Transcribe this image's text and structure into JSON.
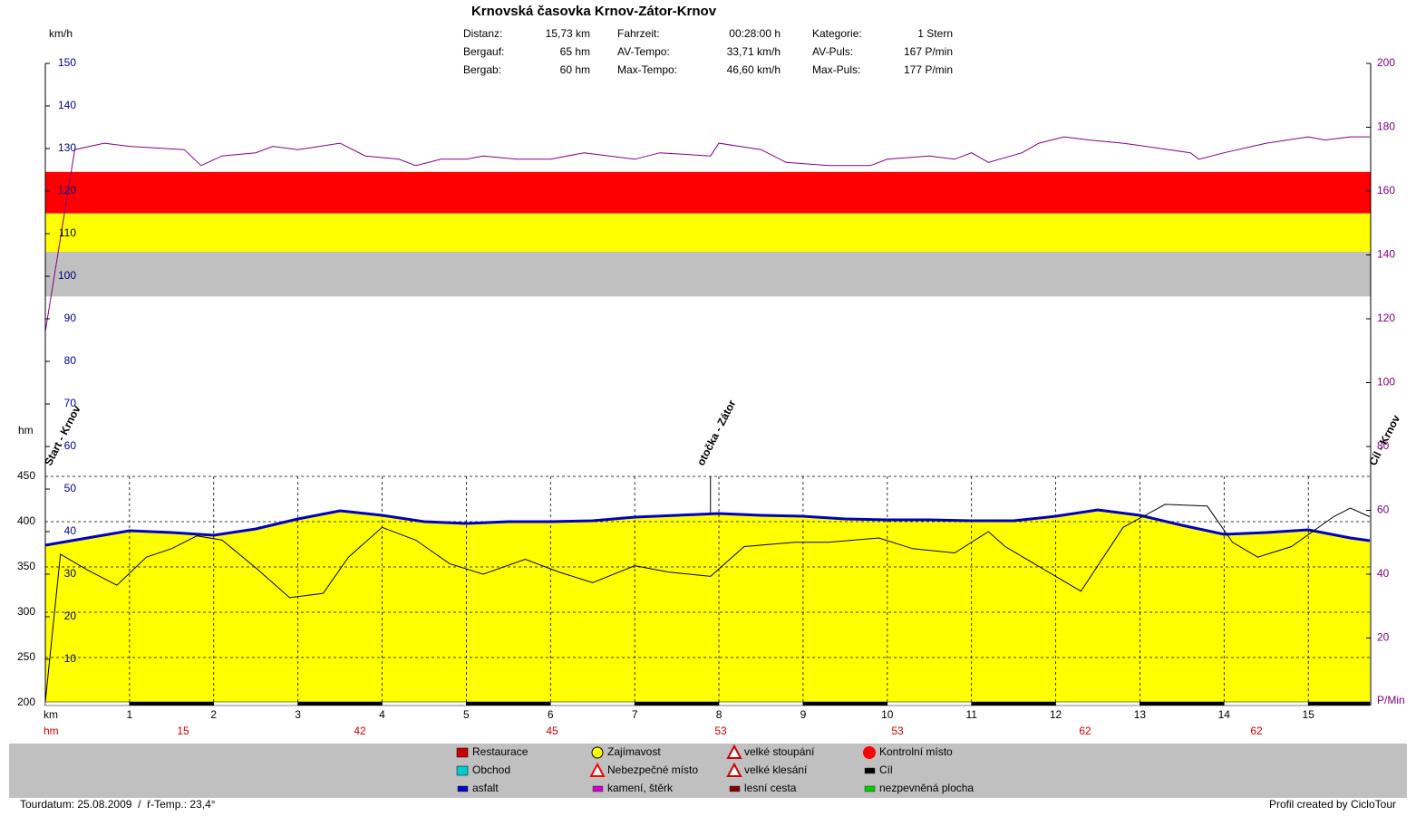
{
  "header": {
    "title": "Krnovská časovka Krnov-Zátor-Krnov",
    "stats": [
      {
        "label": "Distanz:",
        "value": "15,73 km"
      },
      {
        "label": "Bergauf:",
        "value": "65 hm"
      },
      {
        "label": "Bergab:",
        "value": "60 hm"
      },
      {
        "label": "Fahrzeit:",
        "value": "00:28:00 h"
      },
      {
        "label": "AV-Tempo:",
        "value": "33,71 km/h"
      },
      {
        "label": "Max-Tempo:",
        "value": "46,60 km/h"
      },
      {
        "label": "Kategorie:",
        "value": "1 Stern"
      },
      {
        "label": "AV-Puls:",
        "value": "167 P/min"
      },
      {
        "label": "Max-Puls:",
        "value": "177 P/min"
      }
    ]
  },
  "chart_data": {
    "type": "line",
    "ylabel": "km/h",
    "y2label": "P/Min",
    "y3label": "hm",
    "xlabel": "km",
    "xlim": [
      0,
      15.73
    ],
    "xticks": [
      1,
      2,
      3,
      4,
      5,
      6,
      7,
      8,
      9,
      10,
      11,
      12,
      13,
      14,
      15
    ],
    "ylim": [
      0,
      150
    ],
    "yticks": [
      10,
      20,
      30,
      40,
      50,
      60,
      70,
      80,
      90,
      100,
      110,
      120,
      130,
      140,
      150
    ],
    "y2lim": [
      0,
      200
    ],
    "y2ticks": [
      20,
      40,
      60,
      80,
      100,
      120,
      140,
      160,
      180,
      200
    ],
    "y3lim": [
      200,
      450
    ],
    "y3ticks": [
      200,
      250,
      300,
      350,
      400,
      450
    ],
    "pulse_zones": [
      {
        "from": 153,
        "to": 166,
        "color": "#ff0000"
      },
      {
        "from": 141,
        "to": 153,
        "color": "#ffff00"
      },
      {
        "from": 127,
        "to": 141,
        "color": "#c0c0c0"
      }
    ],
    "series": [
      {
        "axis": "y3",
        "color": "#0000c0",
        "fill": "#ffff00",
        "x": [
          0,
          0.5,
          1,
          1.5,
          2,
          2.5,
          3,
          3.5,
          4,
          4.5,
          5,
          5.5,
          6,
          6.5,
          7,
          7.5,
          8,
          8.5,
          9,
          9.5,
          10,
          10.5,
          11,
          11.5,
          12,
          12.5,
          13,
          13.5,
          14,
          14.5,
          15,
          15.5,
          15.73
        ],
        "values": [
          374,
          382,
          390,
          388,
          385,
          392,
          403,
          412,
          407,
          400,
          398,
          400,
          400,
          401,
          405,
          407,
          409,
          407,
          406,
          403,
          402,
          402,
          401,
          401,
          406,
          413,
          407,
          396,
          386,
          388,
          391,
          382,
          379
        ]
      },
      {
        "axis": "y",
        "color": "#000000",
        "x": [
          0,
          0.18,
          0.5,
          0.85,
          1.2,
          1.5,
          1.8,
          2.1,
          2.5,
          2.9,
          3.3,
          3.6,
          4,
          4.4,
          4.8,
          5.2,
          5.7,
          6.1,
          6.5,
          7,
          7.4,
          7.9,
          8.3,
          8.9,
          9.3,
          9.9,
          10.3,
          10.8,
          11.2,
          11.4,
          12,
          12.3,
          12.8,
          13.3,
          13.8,
          14.1,
          14.4,
          14.8,
          15.3,
          15.5,
          15.73
        ],
        "values": [
          0,
          34.7,
          31,
          27.4,
          34,
          36,
          39,
          38,
          31.5,
          24.5,
          25.5,
          34,
          41,
          38,
          32.5,
          30,
          33.5,
          30.5,
          28,
          32,
          30.5,
          29.5,
          36.5,
          37.5,
          37.5,
          38.5,
          36,
          35,
          40,
          36.5,
          29.5,
          26,
          41,
          46.4,
          46,
          37.5,
          34,
          36.5,
          43.5,
          45.5,
          43.5
        ]
      },
      {
        "axis": "y2",
        "color": "#800080",
        "x": [
          0,
          0.35,
          0.7,
          1,
          1.65,
          1.85,
          2.1,
          2.5,
          2.7,
          3,
          3.5,
          3.8,
          4.2,
          4.4,
          4.7,
          5,
          5.2,
          5.6,
          6,
          6.4,
          7,
          7.3,
          7.9,
          8,
          8.5,
          8.8,
          9.3,
          9.8,
          10,
          10.5,
          10.8,
          11,
          11.2,
          11.6,
          11.8,
          12.1,
          12.4,
          12.8,
          13.6,
          13.7,
          14,
          14.5,
          15,
          15.2,
          15.5,
          15.73
        ],
        "values": [
          116,
          173,
          175,
          174,
          173,
          168,
          171,
          172,
          174,
          173,
          175,
          171,
          170,
          168,
          170,
          170,
          171,
          170,
          170,
          172,
          170,
          172,
          171,
          175,
          173,
          169,
          168,
          168,
          170,
          171,
          170,
          172,
          169,
          172,
          175,
          177,
          176,
          175,
          172,
          170,
          172,
          175,
          177,
          176,
          177,
          177
        ]
      }
    ],
    "waypoints": [
      {
        "km": 0,
        "label": "Start - Krnov"
      },
      {
        "km": 7.9,
        "label": "otočka - Zátor"
      },
      {
        "km": 15.73,
        "label": "Cíl - Krnov"
      }
    ],
    "climb_label": "hm",
    "climb_values": [
      15,
      42,
      45,
      53,
      53,
      62,
      62
    ]
  },
  "legend": {
    "items": [
      {
        "label": "Restaurace",
        "color": "#cc0000"
      },
      {
        "label": "Obchod",
        "color": "#00cccc"
      },
      {
        "label": "asfalt",
        "color": "#0000c0"
      },
      {
        "label": "Zajímavost",
        "color": "#ffff00"
      },
      {
        "label": "Nebezpečné místo",
        "color": "#ff0000"
      },
      {
        "label": "kamení, štěrk",
        "color": "#cc00cc"
      },
      {
        "label": "velké stoupání",
        "color": "#cc0000"
      },
      {
        "label": "velké klesání",
        "color": "#cc0000"
      },
      {
        "label": "lesní cesta",
        "color": "#800000"
      },
      {
        "label": "Kontrolní místo",
        "color": "#ff0000"
      },
      {
        "label": "Cíl",
        "color": "#000000"
      },
      {
        "label": "nezpevněná plocha",
        "color": "#00cc00"
      }
    ]
  },
  "footer": {
    "left": "Tourdatum: 25.08.2009  /  ř-Temp.: 23,4°",
    "right": "Profil created by CicloTour"
  }
}
